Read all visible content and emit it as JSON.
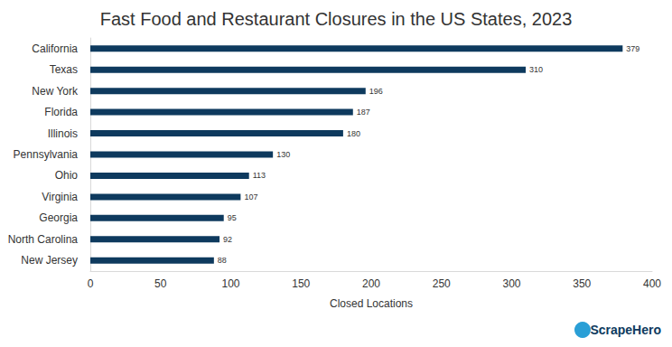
{
  "chart_data": {
    "type": "bar",
    "orientation": "horizontal",
    "title": "Fast Food and Restaurant Closures in the US States, 2023",
    "x_label": "Closed Locations",
    "annotation": "ScrapeHero",
    "categories": [
      "California",
      "Texas",
      "New York",
      "Florida",
      "Illinois",
      "Pennsylvania",
      "Ohio",
      "Virginia",
      "Georgia",
      "North Carolina",
      "New Jersey"
    ],
    "values": [
      379,
      310,
      196,
      187,
      180,
      130,
      113,
      107,
      95,
      92,
      88
    ],
    "color": "#0e3a5e",
    "xlim": [
      0,
      400
    ],
    "xticks": [
      0,
      50,
      100,
      150,
      200,
      250,
      300,
      350,
      400
    ],
    "grid": false,
    "data_labels": true
  }
}
